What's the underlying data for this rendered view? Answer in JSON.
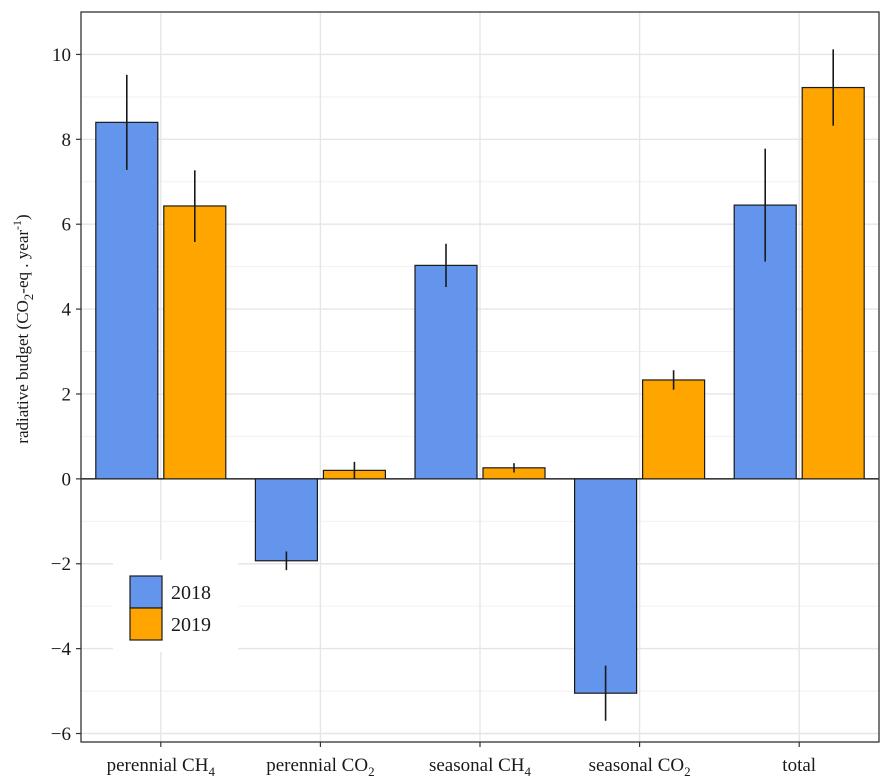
{
  "chart_data": {
    "type": "bar",
    "categories": [
      {
        "main": "perennial CH",
        "sub": "4"
      },
      {
        "main": "perennial CO",
        "sub": "2"
      },
      {
        "main": "seasonal CH",
        "sub": "4"
      },
      {
        "main": "seasonal CO",
        "sub": "2"
      },
      {
        "main": "total",
        "sub": ""
      }
    ],
    "series": [
      {
        "name": "2018",
        "color": "#6495ED",
        "values": [
          8.4,
          -1.93,
          5.03,
          -5.05,
          6.45
        ],
        "err_low": [
          7.28,
          -2.15,
          4.52,
          -5.7,
          5.12
        ],
        "err_high": [
          9.52,
          -1.71,
          5.54,
          -4.4,
          7.78
        ]
      },
      {
        "name": "2019",
        "color": "#FFA500",
        "values": [
          6.43,
          0.2,
          0.26,
          2.33,
          9.22
        ],
        "err_low": [
          5.58,
          0.0,
          0.15,
          2.1,
          8.32
        ],
        "err_high": [
          7.27,
          0.4,
          0.37,
          2.56,
          10.12
        ]
      }
    ],
    "ylabel": {
      "prefix": "radiative budget (CO",
      "sub": "2",
      "mid": "-eq . year",
      "sup": "-1",
      "suffix": ")"
    },
    "xlabel": "",
    "ylim": [
      -6.2,
      11.0
    ],
    "yticks": [
      -6,
      -4,
      -2,
      0,
      2,
      4,
      6,
      8,
      10
    ],
    "ytick_labels": [
      "−6",
      "−4",
      "−2",
      "0",
      "2",
      "4",
      "6",
      "8",
      "10"
    ],
    "grid": true,
    "legend_position": "bottom-left"
  }
}
